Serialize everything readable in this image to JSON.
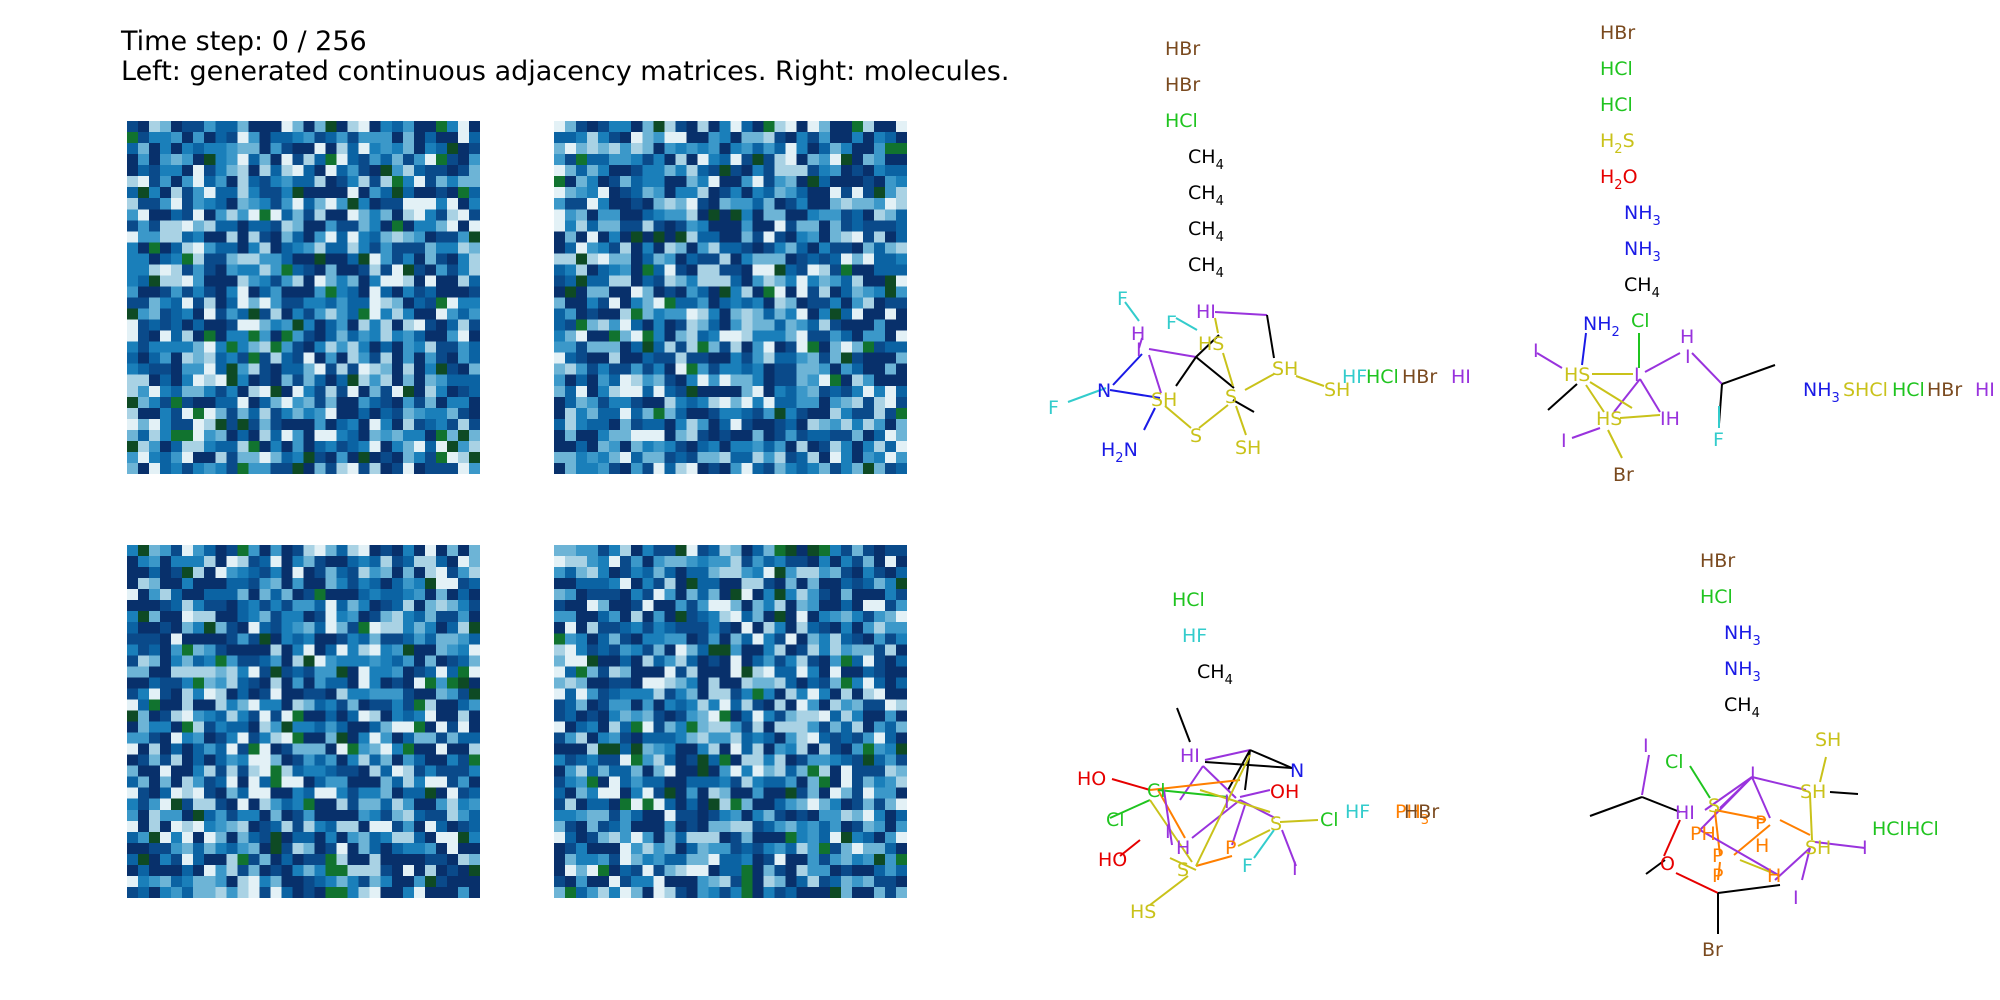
{
  "title": {
    "line1": "Time step: 0 / 256",
    "line2": "Left: generated continuous adjacency matrices. Right: molecules."
  },
  "matrices": {
    "grid_size": 32,
    "colormap": [
      "#08306b",
      "#0a4a8a",
      "#0b63a3",
      "#1a7fba",
      "#3b98c9",
      "#6db4d6",
      "#a9d2e4",
      "#e3f1f6",
      "#0e4a24",
      "#11732f"
    ],
    "panels": [
      {
        "name": "matrix-top-left",
        "seed": 11
      },
      {
        "name": "matrix-top-right",
        "seed": 29
      },
      {
        "name": "matrix-bottom-left",
        "seed": 47
      },
      {
        "name": "matrix-bottom-right",
        "seed": 83
      }
    ]
  },
  "element_colors": {
    "Br": "#7a4a1f",
    "Cl": "#1fc41f",
    "F": "#33cccc",
    "S": "#c9c21a",
    "O": "#e60000",
    "N": "#1a1ae6",
    "C": "#000000",
    "I": "#9933dd",
    "P": "#ff7f00"
  },
  "molecules": [
    {
      "name": "molecule-top-left",
      "fragments": [
        {
          "t": "HBr",
          "el": "Br"
        },
        {
          "t": "HBr",
          "el": "Br"
        },
        {
          "t": "HCl",
          "el": "Cl"
        },
        {
          "t": "CH",
          "sub": "4",
          "el": "C"
        },
        {
          "t": "CH",
          "sub": "4",
          "el": "C"
        },
        {
          "t": "CH",
          "sub": "4",
          "el": "C"
        },
        {
          "t": "CH",
          "sub": "4",
          "el": "C"
        },
        {
          "t": "HF",
          "el": "F"
        },
        {
          "t": "HCl",
          "el": "Cl"
        },
        {
          "t": "HBr",
          "el": "Br"
        },
        {
          "t": "HI",
          "el": "I"
        }
      ],
      "atoms": [
        {
          "t": "F",
          "el": "F"
        },
        {
          "t": "H",
          "el": "I"
        },
        {
          "t": "I",
          "el": "I"
        },
        {
          "t": "F",
          "el": "F"
        },
        {
          "t": "HI",
          "el": "I"
        },
        {
          "t": "HS",
          "el": "S"
        },
        {
          "t": "SH",
          "el": "S"
        },
        {
          "t": "SH",
          "el": "S"
        },
        {
          "t": "N",
          "el": "N"
        },
        {
          "t": "F",
          "el": "F"
        },
        {
          "t": "SH",
          "el": "S"
        },
        {
          "t": "S",
          "el": "S"
        },
        {
          "t": "S",
          "el": "S"
        },
        {
          "t": "H",
          "sub": "2",
          "t2": "N",
          "el": "N"
        },
        {
          "t": "SH",
          "el": "S"
        }
      ]
    },
    {
      "name": "molecule-top-right",
      "fragments": [
        {
          "t": "HBr",
          "el": "Br"
        },
        {
          "t": "HCl",
          "el": "Cl"
        },
        {
          "t": "HCl",
          "el": "Cl"
        },
        {
          "t": "H",
          "sub": "2",
          "t2": "S",
          "el": "S"
        },
        {
          "t": "H",
          "sub": "2",
          "t2": "O",
          "el": "O"
        },
        {
          "t": "NH",
          "sub": "3",
          "el": "N"
        },
        {
          "t": "NH",
          "sub": "3",
          "el": "N"
        },
        {
          "t": "CH",
          "sub": "4",
          "el": "C"
        },
        {
          "t": "NH",
          "sub": "3",
          "el": "N"
        },
        {
          "t": "SHCl",
          "el": "S"
        },
        {
          "t": "HCl",
          "el": "Cl"
        },
        {
          "t": "HBr",
          "el": "Br"
        },
        {
          "t": "HI",
          "el": "I"
        }
      ],
      "atoms": [
        {
          "t": "NH",
          "sub": "2",
          "el": "N"
        },
        {
          "t": "Cl",
          "el": "Cl"
        },
        {
          "t": "I",
          "el": "I"
        },
        {
          "t": "HS",
          "el": "S"
        },
        {
          "t": "I",
          "el": "I"
        },
        {
          "t": "H",
          "el": "I"
        },
        {
          "t": "I",
          "el": "I"
        },
        {
          "t": "HS",
          "el": "S"
        },
        {
          "t": "IH",
          "el": "I"
        },
        {
          "t": "I",
          "el": "I"
        },
        {
          "t": "F",
          "el": "F"
        },
        {
          "t": "Br",
          "el": "Br"
        }
      ]
    },
    {
      "name": "molecule-bottom-left",
      "fragments": [
        {
          "t": "HCl",
          "el": "Cl"
        },
        {
          "t": "HF",
          "el": "F"
        },
        {
          "t": "CH",
          "sub": "4",
          "el": "C"
        },
        {
          "t": "HF",
          "el": "F"
        },
        {
          "t": "PH",
          "sub": "3",
          "el": "P"
        },
        {
          "t": "HBr",
          "el": "Br"
        }
      ],
      "atoms": [
        {
          "t": "HI",
          "el": "I"
        },
        {
          "t": "N",
          "el": "N"
        },
        {
          "t": "HO",
          "el": "O"
        },
        {
          "t": "Cl",
          "el": "Cl"
        },
        {
          "t": "OH",
          "el": "O"
        },
        {
          "t": "I",
          "el": "I"
        },
        {
          "t": "Cl",
          "el": "Cl"
        },
        {
          "t": "S",
          "el": "S"
        },
        {
          "t": "Cl",
          "el": "Cl"
        },
        {
          "t": "HO",
          "el": "O"
        },
        {
          "t": "H",
          "el": "I"
        },
        {
          "t": "P",
          "el": "P"
        },
        {
          "t": "F",
          "el": "F"
        },
        {
          "t": "I",
          "el": "I"
        },
        {
          "t": "S",
          "el": "S"
        },
        {
          "t": "HS",
          "el": "S"
        },
        {
          "t": "I",
          "el": "I"
        }
      ]
    },
    {
      "name": "molecule-bottom-right",
      "fragments": [
        {
          "t": "HBr",
          "el": "Br"
        },
        {
          "t": "HCl",
          "el": "Cl"
        },
        {
          "t": "NH",
          "sub": "3",
          "el": "N"
        },
        {
          "t": "NH",
          "sub": "3",
          "el": "N"
        },
        {
          "t": "CH",
          "sub": "4",
          "el": "C"
        },
        {
          "t": "HCl",
          "el": "Cl"
        },
        {
          "t": "HCl",
          "el": "Cl"
        }
      ],
      "atoms": [
        {
          "t": "SH",
          "el": "S"
        },
        {
          "t": "I",
          "el": "I"
        },
        {
          "t": "Cl",
          "el": "Cl"
        },
        {
          "t": "I",
          "el": "I"
        },
        {
          "t": "HI",
          "el": "I"
        },
        {
          "t": "S",
          "el": "S"
        },
        {
          "t": "SH",
          "el": "S"
        },
        {
          "t": "PH",
          "el": "P"
        },
        {
          "t": "P",
          "el": "P"
        },
        {
          "t": "P",
          "el": "P"
        },
        {
          "t": "H",
          "el": "P"
        },
        {
          "t": "O",
          "el": "O"
        },
        {
          "t": "P",
          "el": "P"
        },
        {
          "t": "H",
          "el": "P"
        },
        {
          "t": "SH",
          "el": "S"
        },
        {
          "t": "I",
          "el": "I"
        },
        {
          "t": "I",
          "el": "I"
        },
        {
          "t": "Br",
          "el": "Br"
        },
        {
          "t": "OH",
          "el": "O"
        }
      ]
    }
  ]
}
